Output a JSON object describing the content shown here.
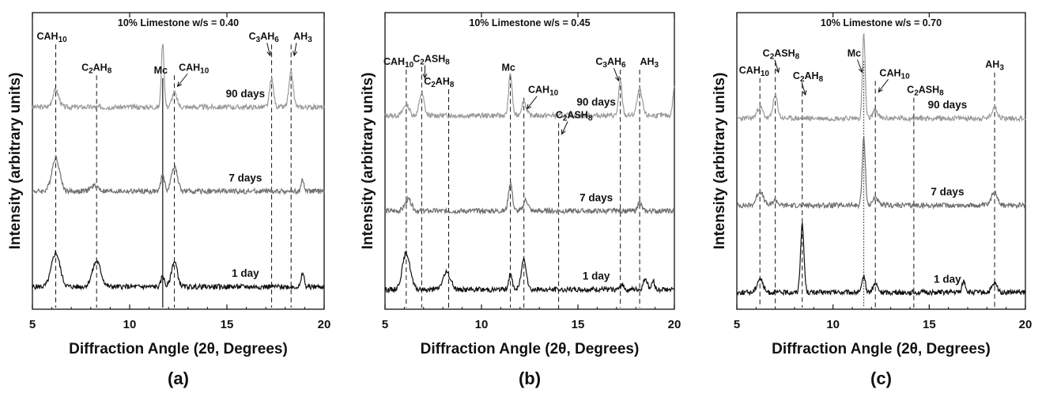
{
  "figure": {
    "panel_labels": [
      "(a)",
      "(b)",
      "(c)"
    ],
    "ylabel": "Intensity (arbitrary units)",
    "xlabel": "Diffraction Angle (2θ, Degrees)"
  },
  "chart_data": [
    {
      "type": "line",
      "panel": "(a)",
      "title": "10% Limestone w/s = 0.40",
      "xlabel": "Diffraction Angle (2θ, Degrees)",
      "ylabel": "Intensity (arbitrary units)",
      "xlim": [
        5,
        20
      ],
      "xticks": [
        5,
        10,
        15,
        20
      ],
      "series": [
        {
          "name": "90 days",
          "color": "#9a9a9a",
          "baseline": 0.72,
          "peaks": [
            {
              "x": 6.2,
              "h": 0.06,
              "w": 0.16
            },
            {
              "x": 11.7,
              "h": 0.23,
              "w": 0.07
            },
            {
              "x": 12.3,
              "h": 0.05,
              "w": 0.13
            },
            {
              "x": 17.3,
              "h": 0.1,
              "w": 0.1
            },
            {
              "x": 18.3,
              "h": 0.12,
              "w": 0.11
            }
          ]
        },
        {
          "name": "7 days",
          "color": "#6f6f6f",
          "baseline": 0.42,
          "peaks": [
            {
              "x": 6.2,
              "h": 0.12,
              "w": 0.2
            },
            {
              "x": 8.2,
              "h": 0.02,
              "w": 0.2
            },
            {
              "x": 11.7,
              "h": 0.06,
              "w": 0.09
            },
            {
              "x": 12.3,
              "h": 0.09,
              "w": 0.15
            },
            {
              "x": 18.9,
              "h": 0.04,
              "w": 0.07
            }
          ]
        },
        {
          "name": "1 day",
          "color": "#111111",
          "baseline": 0.08,
          "peaks": [
            {
              "x": 6.2,
              "h": 0.12,
              "w": 0.22
            },
            {
              "x": 8.3,
              "h": 0.09,
              "w": 0.22
            },
            {
              "x": 11.7,
              "h": 0.04,
              "w": 0.08
            },
            {
              "x": 12.3,
              "h": 0.09,
              "w": 0.15
            },
            {
              "x": 18.9,
              "h": 0.05,
              "w": 0.07
            }
          ]
        }
      ],
      "reference_lines": [
        {
          "label": "CAH10",
          "x": 6.2,
          "style": "dashed",
          "label_x": 6.0,
          "label_y": 0.96
        },
        {
          "label": "C2AH8",
          "x": 8.3,
          "style": "dashed",
          "label_x": 8.3,
          "label_y": 0.85
        },
        {
          "label": "Mc",
          "x": 11.7,
          "style": "solid",
          "label_x": 11.6,
          "label_y": 0.84
        },
        {
          "label": "CAH10",
          "x": 12.3,
          "style": "dashed",
          "label_x": 13.3,
          "label_y": 0.85,
          "arrow": true
        },
        {
          "label": "C3AH6",
          "x": 17.3,
          "style": "dashed",
          "label_x": 16.9,
          "label_y": 0.96,
          "arrow": true
        },
        {
          "label": "AH3",
          "x": 18.3,
          "style": "dashed",
          "label_x": 18.9,
          "label_y": 0.96,
          "arrow": true
        }
      ]
    },
    {
      "type": "line",
      "panel": "(b)",
      "title": "10% Limestone w/s = 0.45",
      "xlabel": "Diffraction Angle (2θ, Degrees)",
      "ylabel": "Intensity (arbitrary units)",
      "xlim": [
        5,
        20
      ],
      "xticks": [
        5,
        10,
        15,
        20
      ],
      "series": [
        {
          "name": "90 days",
          "color": "#9a9a9a",
          "baseline": 0.69,
          "peaks": [
            {
              "x": 6.1,
              "h": 0.04,
              "w": 0.15
            },
            {
              "x": 6.9,
              "h": 0.08,
              "w": 0.12
            },
            {
              "x": 11.5,
              "h": 0.15,
              "w": 0.09
            },
            {
              "x": 12.2,
              "h": 0.05,
              "w": 0.12
            },
            {
              "x": 17.2,
              "h": 0.12,
              "w": 0.09
            },
            {
              "x": 18.2,
              "h": 0.09,
              "w": 0.13
            },
            {
              "x": 20.0,
              "h": 0.1,
              "w": 0.08
            }
          ]
        },
        {
          "name": "7 days",
          "color": "#6f6f6f",
          "baseline": 0.35,
          "peaks": [
            {
              "x": 6.2,
              "h": 0.04,
              "w": 0.17
            },
            {
              "x": 11.5,
              "h": 0.1,
              "w": 0.1
            },
            {
              "x": 12.3,
              "h": 0.04,
              "w": 0.12
            },
            {
              "x": 18.2,
              "h": 0.03,
              "w": 0.1
            }
          ]
        },
        {
          "name": "1 day",
          "color": "#111111",
          "baseline": 0.07,
          "peaks": [
            {
              "x": 6.1,
              "h": 0.13,
              "w": 0.2
            },
            {
              "x": 8.2,
              "h": 0.06,
              "w": 0.2
            },
            {
              "x": 11.5,
              "h": 0.05,
              "w": 0.1
            },
            {
              "x": 12.2,
              "h": 0.11,
              "w": 0.13
            },
            {
              "x": 17.3,
              "h": 0.02,
              "w": 0.08
            },
            {
              "x": 18.5,
              "h": 0.04,
              "w": 0.1
            },
            {
              "x": 18.9,
              "h": 0.03,
              "w": 0.08
            }
          ]
        }
      ],
      "reference_lines": [
        {
          "label": "CAH10",
          "x": 6.1,
          "style": "dashed",
          "label_x": 5.7,
          "label_y": 0.87
        },
        {
          "label": "C2ASH8",
          "x": 6.9,
          "style": "dashed",
          "label_x": 7.4,
          "label_y": 0.88,
          "arrow": true
        },
        {
          "label": "C2AH8",
          "x": 8.3,
          "style": "dashed",
          "label_x": 7.8,
          "label_y": 0.8
        },
        {
          "label": "Mc",
          "x": 11.5,
          "style": "dashed",
          "label_x": 11.4,
          "label_y": 0.85
        },
        {
          "label": "CAH10",
          "x": 12.2,
          "style": "dashed",
          "label_x": 13.2,
          "label_y": 0.77,
          "arrow": true
        },
        {
          "label": "C2ASH8",
          "x": 14.0,
          "style": "dashed",
          "label_x": 14.8,
          "label_y": 0.68,
          "arrow": true
        },
        {
          "label": "C3AH6",
          "x": 17.2,
          "style": "dashed",
          "label_x": 16.7,
          "label_y": 0.87,
          "arrow": true
        },
        {
          "label": "AH3",
          "x": 18.2,
          "style": "dashed",
          "label_x": 18.7,
          "label_y": 0.87
        }
      ]
    },
    {
      "type": "line",
      "panel": "(c)",
      "title": "10% Limestone w/s = 0.70",
      "xlabel": "Diffraction Angle (2θ, Degrees)",
      "ylabel": "Intensity (arbitrary units)",
      "xlim": [
        5,
        20
      ],
      "xticks": [
        5,
        10,
        15,
        20
      ],
      "series": [
        {
          "name": "90 days",
          "color": "#9a9a9a",
          "baseline": 0.68,
          "peaks": [
            {
              "x": 6.2,
              "h": 0.04,
              "w": 0.15
            },
            {
              "x": 7.0,
              "h": 0.08,
              "w": 0.12
            },
            {
              "x": 11.6,
              "h": 0.3,
              "w": 0.07
            },
            {
              "x": 12.2,
              "h": 0.03,
              "w": 0.12
            },
            {
              "x": 18.4,
              "h": 0.04,
              "w": 0.14
            }
          ]
        },
        {
          "name": "7 days",
          "color": "#6f6f6f",
          "baseline": 0.37,
          "peaks": [
            {
              "x": 6.2,
              "h": 0.05,
              "w": 0.17
            },
            {
              "x": 7.0,
              "h": 0.02,
              "w": 0.12
            },
            {
              "x": 11.6,
              "h": 0.24,
              "w": 0.08
            },
            {
              "x": 12.2,
              "h": 0.03,
              "w": 0.12
            },
            {
              "x": 18.4,
              "h": 0.05,
              "w": 0.15
            }
          ]
        },
        {
          "name": "1 day",
          "color": "#111111",
          "baseline": 0.06,
          "peaks": [
            {
              "x": 6.2,
              "h": 0.05,
              "w": 0.15
            },
            {
              "x": 8.4,
              "h": 0.24,
              "w": 0.09
            },
            {
              "x": 11.6,
              "h": 0.06,
              "w": 0.08
            },
            {
              "x": 12.2,
              "h": 0.03,
              "w": 0.12
            },
            {
              "x": 16.8,
              "h": 0.04,
              "w": 0.09
            },
            {
              "x": 18.4,
              "h": 0.03,
              "w": 0.14
            }
          ]
        }
      ],
      "reference_lines": [
        {
          "label": "CAH10",
          "x": 6.2,
          "style": "dashed",
          "label_x": 5.9,
          "label_y": 0.84
        },
        {
          "label": "C2ASH8",
          "x": 7.0,
          "style": "dashed",
          "label_x": 7.3,
          "label_y": 0.9,
          "arrow": true
        },
        {
          "label": "C2AH8",
          "x": 8.4,
          "style": "dashed",
          "label_x": 8.7,
          "label_y": 0.82,
          "arrow": true
        },
        {
          "label": "Mc",
          "x": 11.6,
          "style": "dotted",
          "label_x": 11.1,
          "label_y": 0.9,
          "arrow": true
        },
        {
          "label": "CAH10",
          "x": 12.2,
          "style": "dashed",
          "label_x": 13.2,
          "label_y": 0.83,
          "arrow": true
        },
        {
          "label": "C2ASH8",
          "x": 14.2,
          "style": "dashed",
          "label_x": 14.8,
          "label_y": 0.77
        },
        {
          "label": "AH3",
          "x": 18.4,
          "style": "dashed",
          "label_x": 18.4,
          "label_y": 0.86
        }
      ]
    }
  ]
}
